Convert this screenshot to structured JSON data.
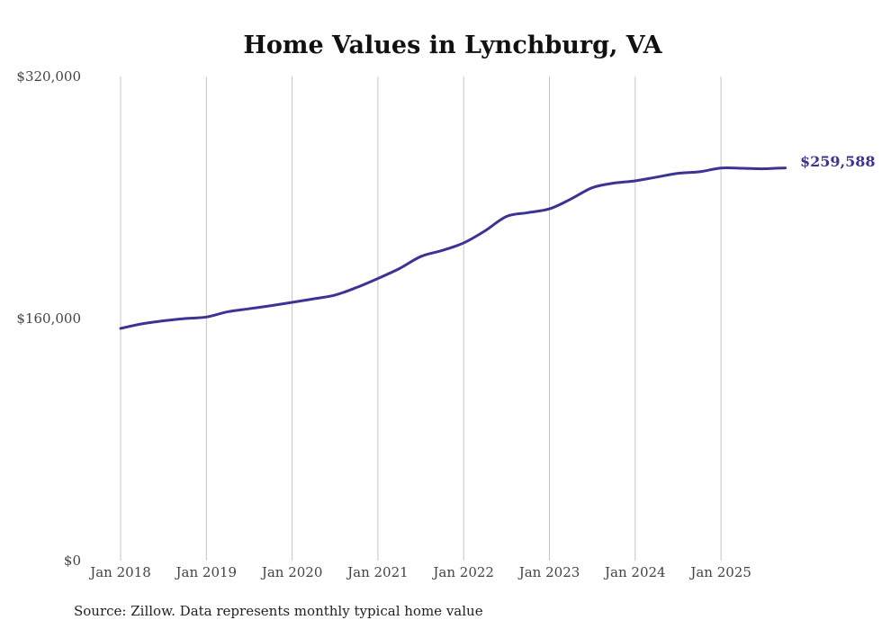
{
  "chart_data": {
    "type": "line",
    "title": "Home Values in Lynchburg, VA",
    "xlabel": "",
    "ylabel": "",
    "ylim": [
      0,
      320000
    ],
    "xlim": [
      2018.0,
      2025.75
    ],
    "y_ticks": [
      {
        "value": 0,
        "label": "$0"
      },
      {
        "value": 160000,
        "label": "$160,000"
      },
      {
        "value": 320000,
        "label": "$320,000"
      }
    ],
    "x_ticks": [
      {
        "value": 2018,
        "label": "Jan 2018"
      },
      {
        "value": 2019,
        "label": "Jan 2019"
      },
      {
        "value": 2020,
        "label": "Jan 2020"
      },
      {
        "value": 2021,
        "label": "Jan 2021"
      },
      {
        "value": 2022,
        "label": "Jan 2022"
      },
      {
        "value": 2023,
        "label": "Jan 2023"
      },
      {
        "value": 2024,
        "label": "Jan 2024"
      },
      {
        "value": 2025,
        "label": "Jan 2025"
      }
    ],
    "grid": "vertical",
    "series": [
      {
        "name": "Typical home value",
        "color": "#3b3494",
        "x": [
          2018.0,
          2018.25,
          2018.5,
          2018.75,
          2019.0,
          2019.25,
          2019.5,
          2019.75,
          2020.0,
          2020.25,
          2020.5,
          2020.75,
          2021.0,
          2021.25,
          2021.5,
          2021.75,
          2022.0,
          2022.25,
          2022.5,
          2022.75,
          2023.0,
          2023.25,
          2023.5,
          2023.75,
          2024.0,
          2024.25,
          2024.5,
          2024.75,
          2025.0,
          2025.25,
          2025.5,
          2025.75
        ],
        "values": [
          153500,
          156500,
          158500,
          160000,
          161000,
          164500,
          166500,
          168500,
          170700,
          173000,
          175500,
          180500,
          186500,
          193000,
          201000,
          205000,
          210000,
          218000,
          227500,
          230000,
          232500,
          239000,
          246500,
          249500,
          251000,
          253500,
          256000,
          257000,
          259500,
          259300,
          259000,
          259588
        ]
      }
    ],
    "end_label": "$259,588",
    "source": "Source: Zillow. Data represents monthly typical home value"
  }
}
